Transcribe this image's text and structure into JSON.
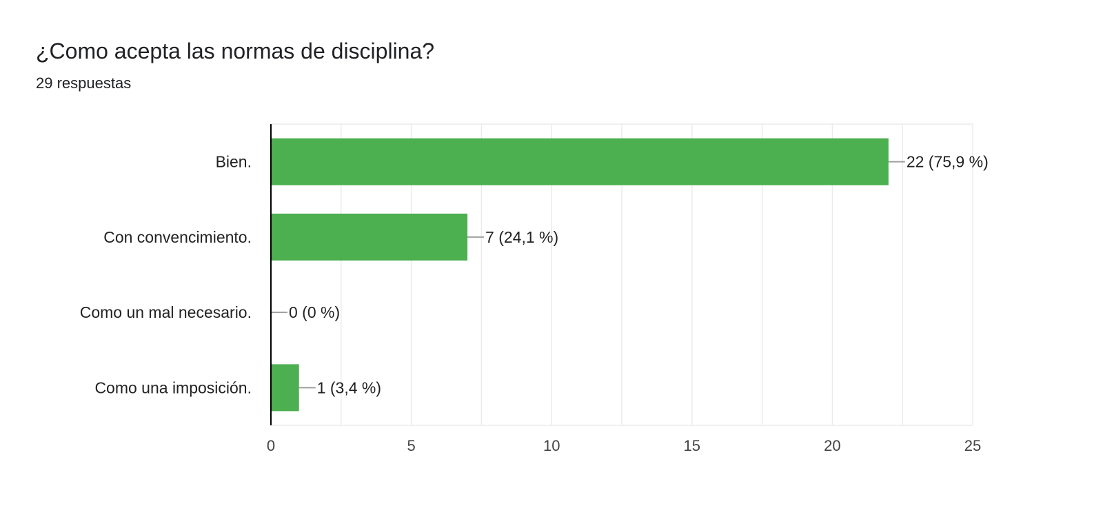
{
  "header": {
    "title": "¿Como acepta las normas de disciplina?",
    "subtitle": "29 respuestas"
  },
  "colors": {
    "bar": "#4caf50",
    "grid": "#ebebeb",
    "axis": "#000000",
    "leader": "#9e9e9e"
  },
  "chart_data": {
    "type": "bar",
    "orientation": "horizontal",
    "categories": [
      "Bien.",
      "Con convencimiento.",
      "Como un mal necesario.",
      "Como una imposición."
    ],
    "values": [
      22,
      7,
      0,
      1
    ],
    "data_labels": [
      "22 (75,9 %)",
      "7 (24,1 %)",
      "0 (0 %)",
      "1 (3,4 %)"
    ],
    "xlim": [
      0,
      25
    ],
    "x_ticks": [
      0,
      5,
      10,
      15,
      20,
      25
    ],
    "x_tick_labels": [
      "0",
      "5",
      "10",
      "15",
      "20",
      "25"
    ],
    "grid": true,
    "legend": "none"
  }
}
